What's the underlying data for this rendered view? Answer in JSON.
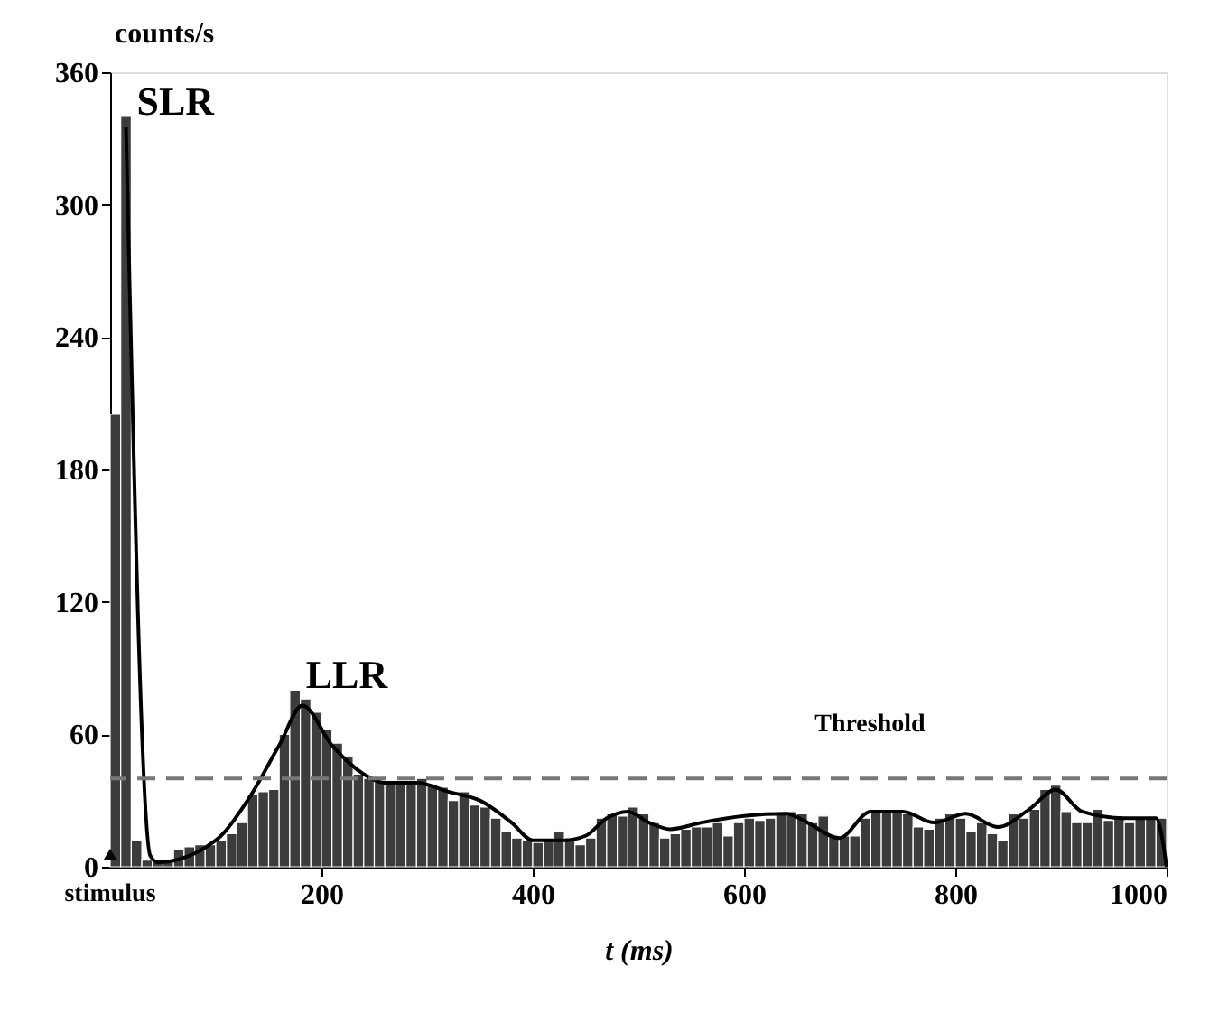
{
  "chart_data": {
    "type": "histogram",
    "bins": [
      0,
      10,
      20,
      30,
      40,
      50,
      60,
      70,
      80,
      90,
      100,
      110,
      120,
      130,
      140,
      150,
      160,
      170,
      180,
      190,
      200,
      210,
      220,
      230,
      240,
      250,
      260,
      270,
      280,
      290,
      300,
      310,
      320,
      330,
      340,
      350,
      360,
      370,
      380,
      390,
      400,
      410,
      420,
      430,
      440,
      450,
      460,
      470,
      480,
      490,
      500,
      510,
      520,
      530,
      540,
      550,
      560,
      570,
      580,
      590,
      600,
      610,
      620,
      630,
      640,
      650,
      660,
      670,
      680,
      690,
      700,
      710,
      720,
      730,
      740,
      750,
      760,
      770,
      780,
      790,
      800,
      810,
      820,
      830,
      840,
      850,
      860,
      870,
      880,
      890,
      900,
      910,
      920,
      930,
      940,
      950,
      960,
      970,
      980,
      990,
      1000
    ],
    "values": [
      205,
      340,
      12,
      3,
      2,
      3,
      8,
      9,
      10,
      10,
      12,
      15,
      20,
      33,
      34,
      35,
      60,
      80,
      76,
      70,
      62,
      56,
      50,
      42,
      40,
      39,
      38,
      38,
      38,
      40,
      37,
      36,
      30,
      34,
      28,
      27,
      22,
      16,
      13,
      12,
      11,
      12,
      16,
      13,
      10,
      13,
      22,
      24,
      23,
      27,
      24,
      20,
      13,
      15,
      17,
      18,
      18,
      20,
      14,
      20,
      22,
      21,
      22,
      24,
      25,
      24,
      20,
      23,
      14,
      14,
      14,
      22,
      26,
      26,
      25,
      24,
      18,
      17,
      22,
      24,
      22,
      16,
      20,
      15,
      12,
      24,
      22,
      26,
      35,
      37,
      25,
      20,
      20,
      26,
      21,
      22,
      20,
      22,
      22,
      22
    ],
    "color": "#3c3c3c",
    "series": [
      {
        "type": "line",
        "color": "#000000",
        "x": [
          15,
          38,
          45,
          100,
          130,
          160,
          182,
          210,
          240,
          260,
          290,
          320,
          350,
          380,
          400,
          430,
          450,
          470,
          490,
          510,
          530,
          560,
          600,
          640,
          660,
          690,
          720,
          750,
          780,
          810,
          840,
          870,
          895,
          920,
          960,
          990,
          1000
        ],
        "values": [
          335,
          5,
          2,
          12,
          30,
          55,
          73,
          55,
          42,
          38,
          38,
          34,
          30,
          20,
          12,
          12,
          14,
          22,
          25,
          20,
          17,
          20,
          23,
          24,
          20,
          13,
          25,
          25,
          20,
          24,
          18,
          26,
          35,
          25,
          22,
          22,
          0
        ]
      }
    ],
    "xlim": [
      0,
      1000
    ],
    "xticks": [
      200,
      400,
      600,
      800,
      1000
    ],
    "ylim": [
      0,
      360
    ],
    "yticks": [
      0,
      60,
      120,
      180,
      240,
      300,
      360
    ],
    "xlabel": "t (ms)",
    "ylabel": "counts/s",
    "ref_lines": [
      {
        "axis": "y",
        "value": 40,
        "label": "Threshold",
        "line_style": "dashed",
        "color": "#777777"
      }
    ],
    "annotations": [
      {
        "text": "SLR",
        "x": 15,
        "y": 340
      },
      {
        "text": "LLR",
        "x": 175,
        "y": 80
      },
      "stimulus"
    ],
    "grid": false
  }
}
